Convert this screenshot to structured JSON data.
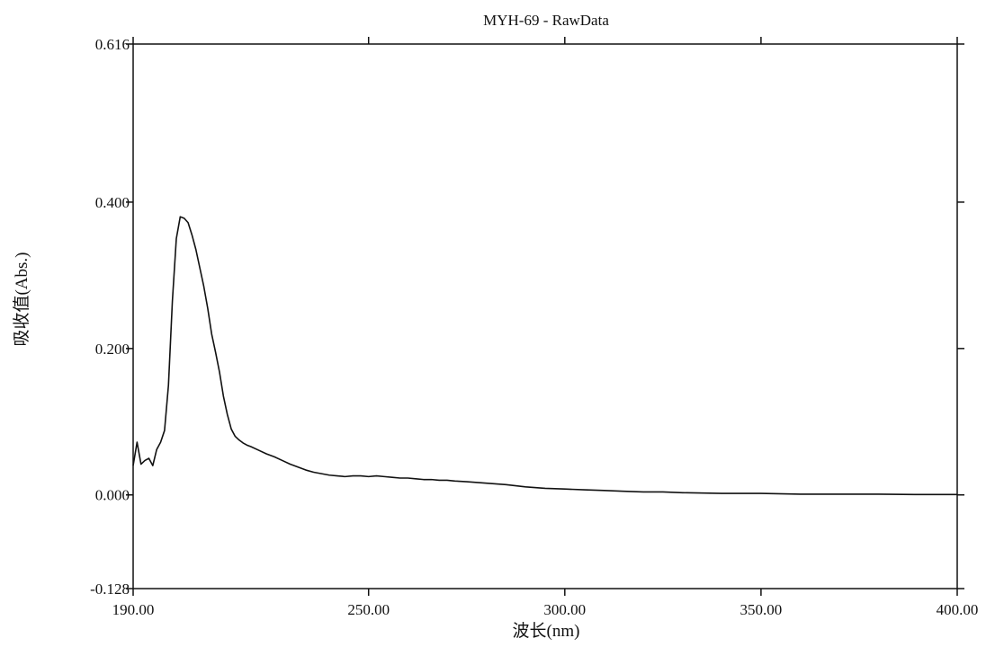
{
  "chart_data": {
    "type": "line",
    "title": "MYH-69 - RawData",
    "xlabel": "波长(nm)",
    "ylabel": "吸收值(Abs.)",
    "xlim": [
      190,
      400
    ],
    "ylim": [
      -0.128,
      0.616
    ],
    "x_ticks": [
      190,
      250,
      300,
      350,
      400
    ],
    "x_tick_labels": [
      "190.00",
      "250.00",
      "300.00",
      "350.00",
      "400.00"
    ],
    "y_ticks": [
      -0.128,
      0.0,
      0.2,
      0.4,
      0.616
    ],
    "y_tick_labels": [
      "-0.128",
      "0.000",
      "0.200",
      "0.400",
      "0.616"
    ],
    "grid": false,
    "colors": {
      "line": "#111111",
      "axes": "#111111",
      "background": "#ffffff"
    },
    "series": [
      {
        "x": [
          190,
          191,
          192,
          193,
          194,
          195,
          196,
          197,
          198,
          199,
          200,
          201,
          202,
          203,
          204,
          205,
          206,
          207,
          208,
          209,
          210,
          211,
          212,
          213,
          214,
          215,
          216,
          217,
          218,
          219,
          220,
          222,
          224,
          226,
          228,
          230,
          232,
          234,
          236,
          238,
          240,
          242,
          244,
          246,
          248,
          250,
          252,
          254,
          256,
          258,
          260,
          262,
          264,
          266,
          268,
          270,
          272,
          275,
          280,
          285,
          290,
          295,
          300,
          305,
          310,
          315,
          320,
          325,
          330,
          340,
          350,
          360,
          370,
          380,
          390,
          400
        ],
        "y": [
          0.04,
          0.072,
          0.042,
          0.047,
          0.05,
          0.04,
          0.062,
          0.072,
          0.088,
          0.15,
          0.265,
          0.35,
          0.38,
          0.378,
          0.372,
          0.355,
          0.335,
          0.31,
          0.285,
          0.255,
          0.22,
          0.195,
          0.168,
          0.135,
          0.11,
          0.09,
          0.08,
          0.075,
          0.071,
          0.068,
          0.066,
          0.061,
          0.056,
          0.052,
          0.047,
          0.042,
          0.038,
          0.034,
          0.031,
          0.029,
          0.027,
          0.026,
          0.025,
          0.026,
          0.026,
          0.025,
          0.026,
          0.025,
          0.024,
          0.023,
          0.023,
          0.022,
          0.021,
          0.021,
          0.02,
          0.02,
          0.019,
          0.018,
          0.016,
          0.014,
          0.011,
          0.009,
          0.008,
          0.007,
          0.006,
          0.005,
          0.004,
          0.004,
          0.003,
          0.002,
          0.002,
          0.001,
          0.001,
          0.001,
          0.0005,
          0.0005
        ]
      }
    ]
  }
}
